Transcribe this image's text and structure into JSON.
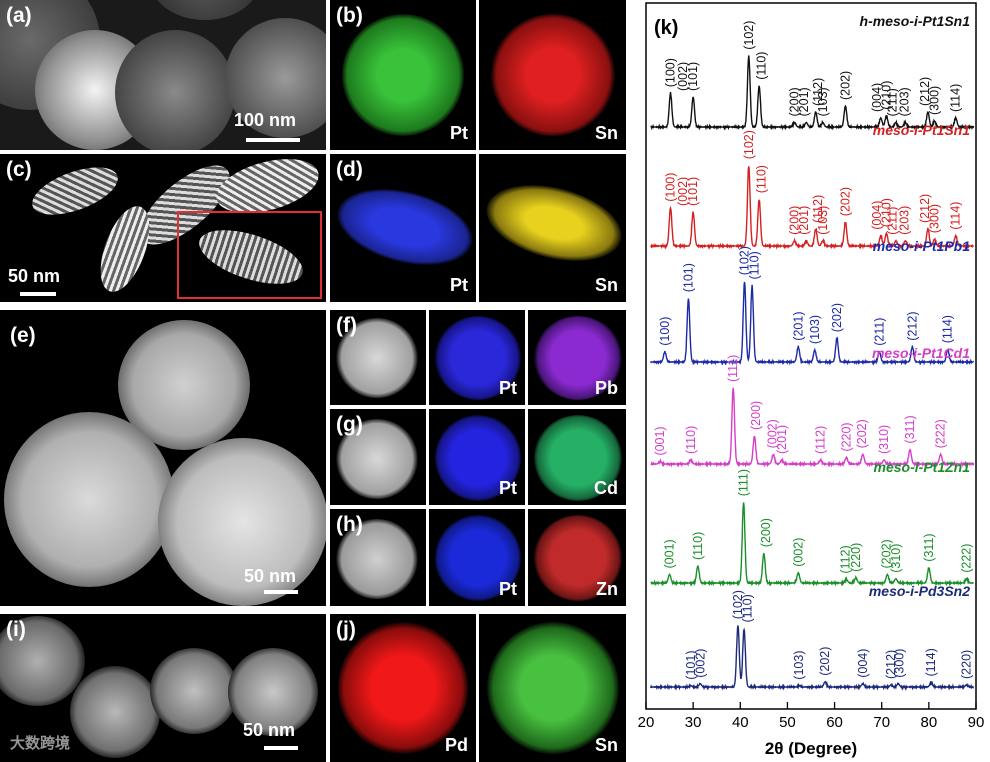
{
  "panels": {
    "a": {
      "label": "(a)",
      "scale": "100 nm"
    },
    "b": {
      "label": "(b)",
      "el1": "Pt",
      "el2": "Sn"
    },
    "c": {
      "label": "(c)",
      "scale": "50 nm"
    },
    "d": {
      "label": "(d)",
      "el1": "Pt",
      "el2": "Sn"
    },
    "e": {
      "label": "(e)",
      "scale": "50 nm"
    },
    "f": {
      "label": "(f)",
      "el1": "Pt",
      "el2": "Pb"
    },
    "g": {
      "label": "(g)",
      "el1": "Pt",
      "el2": "Cd"
    },
    "h": {
      "label": "(h)",
      "el1": "Pt",
      "el2": "Zn"
    },
    "i": {
      "label": "(i)",
      "scale": "50 nm"
    },
    "j": {
      "label": "(j)",
      "el1": "Pd",
      "el2": "Sn"
    }
  },
  "watermark": "大数跨境",
  "chart_data": {
    "type": "line",
    "panel_label": "(k)",
    "xlabel": "2θ (Degree)",
    "xlim": [
      20,
      90
    ],
    "xticks": [
      20,
      30,
      40,
      50,
      60,
      70,
      80,
      90
    ],
    "series": [
      {
        "name": "h-meso-i-Pt1Sn1",
        "color": "#111111",
        "peaks": [
          [
            25.2,
            0.45
          ],
          [
            30.0,
            0.4
          ],
          [
            41.8,
            0.95
          ],
          [
            44.0,
            0.55
          ],
          [
            51.5,
            0.06
          ],
          [
            54.0,
            0.06
          ],
          [
            56.0,
            0.2
          ],
          [
            57.5,
            0.06
          ],
          [
            62.3,
            0.28
          ],
          [
            69.8,
            0.12
          ],
          [
            71.0,
            0.15
          ],
          [
            73.0,
            0.06
          ],
          [
            75.0,
            0.06
          ],
          [
            79.8,
            0.2
          ],
          [
            81.2,
            0.08
          ],
          [
            85.7,
            0.12
          ]
        ],
        "labels": [
          {
            "x": 25.2,
            "t": "(100)"
          },
          {
            "x": 27.8,
            "t": "(002)"
          },
          {
            "x": 30.0,
            "t": "(101)"
          },
          {
            "x": 41.8,
            "t": "(102)"
          },
          {
            "x": 44.5,
            "t": "(110)"
          },
          {
            "x": 51.5,
            "t": "(200)"
          },
          {
            "x": 53.5,
            "t": "(201)"
          },
          {
            "x": 56.5,
            "t": "(112)"
          },
          {
            "x": 57.5,
            "t": "(103)"
          },
          {
            "x": 62.3,
            "t": "(202)"
          },
          {
            "x": 69.0,
            "t": "(004)"
          },
          {
            "x": 71.0,
            "t": "(210)"
          },
          {
            "x": 72.3,
            "t": "(211)"
          },
          {
            "x": 74.8,
            "t": "(203)"
          },
          {
            "x": 79.2,
            "t": "(212)"
          },
          {
            "x": 81.2,
            "t": "(300)"
          },
          {
            "x": 85.7,
            "t": "(114)"
          }
        ]
      },
      {
        "name": "meso-i-Pt1Sn1",
        "color": "#d42020",
        "peaks": [
          [
            25.2,
            0.45
          ],
          [
            30.0,
            0.4
          ],
          [
            41.8,
            0.95
          ],
          [
            44.0,
            0.55
          ],
          [
            51.5,
            0.06
          ],
          [
            54.0,
            0.06
          ],
          [
            56.0,
            0.2
          ],
          [
            57.5,
            0.06
          ],
          [
            62.3,
            0.28
          ],
          [
            69.8,
            0.12
          ],
          [
            71.0,
            0.15
          ],
          [
            73.0,
            0.06
          ],
          [
            75.0,
            0.06
          ],
          [
            79.8,
            0.2
          ],
          [
            81.2,
            0.08
          ],
          [
            85.7,
            0.12
          ]
        ],
        "labels": [
          {
            "x": 25.2,
            "t": "(100)"
          },
          {
            "x": 27.8,
            "t": "(002)"
          },
          {
            "x": 30.0,
            "t": "(101)"
          },
          {
            "x": 41.8,
            "t": "(102)"
          },
          {
            "x": 44.5,
            "t": "(110)"
          },
          {
            "x": 51.5,
            "t": "(200)"
          },
          {
            "x": 53.5,
            "t": "(201)"
          },
          {
            "x": 56.5,
            "t": "(112)"
          },
          {
            "x": 57.5,
            "t": "(103)"
          },
          {
            "x": 62.3,
            "t": "(202)"
          },
          {
            "x": 69.0,
            "t": "(004)"
          },
          {
            "x": 71.0,
            "t": "(210)"
          },
          {
            "x": 72.3,
            "t": "(211)"
          },
          {
            "x": 74.8,
            "t": "(203)"
          },
          {
            "x": 79.2,
            "t": "(212)"
          },
          {
            "x": 81.2,
            "t": "(300)"
          },
          {
            "x": 85.7,
            "t": "(114)"
          }
        ]
      },
      {
        "name": "meso-i-Pt1Pb1",
        "color": "#1c2aa6",
        "peaks": [
          [
            24.0,
            0.12
          ],
          [
            29.0,
            0.75
          ],
          [
            40.9,
            0.95
          ],
          [
            42.5,
            0.9
          ],
          [
            52.3,
            0.18
          ],
          [
            55.8,
            0.14
          ],
          [
            60.5,
            0.28
          ],
          [
            69.5,
            0.12
          ],
          [
            76.5,
            0.18
          ],
          [
            84.0,
            0.15
          ]
        ],
        "labels": [
          {
            "x": 24.0,
            "t": "(100)"
          },
          {
            "x": 29.0,
            "t": "(101)"
          },
          {
            "x": 40.9,
            "t": "(102)"
          },
          {
            "x": 43.0,
            "t": "(110)"
          },
          {
            "x": 52.3,
            "t": "(201)"
          },
          {
            "x": 55.8,
            "t": "(103)"
          },
          {
            "x": 60.5,
            "t": "(202)"
          },
          {
            "x": 69.5,
            "t": "(211)"
          },
          {
            "x": 76.5,
            "t": "(212)"
          },
          {
            "x": 84.0,
            "t": "(114)"
          }
        ]
      },
      {
        "name": "meso-i-Pt1Cd1",
        "color": "#d43ec8",
        "peaks": [
          [
            23.0,
            0.03
          ],
          [
            29.5,
            0.05
          ],
          [
            38.5,
            0.95
          ],
          [
            43.0,
            0.35
          ],
          [
            47.0,
            0.12
          ],
          [
            48.8,
            0.05
          ],
          [
            57.0,
            0.05
          ],
          [
            62.5,
            0.08
          ],
          [
            66.0,
            0.12
          ],
          [
            70.5,
            0.05
          ],
          [
            76.0,
            0.18
          ],
          [
            82.5,
            0.12
          ]
        ],
        "labels": [
          {
            "x": 23.0,
            "t": "(001)"
          },
          {
            "x": 29.5,
            "t": "(110)"
          },
          {
            "x": 38.5,
            "t": "(111)"
          },
          {
            "x": 43.3,
            "t": "(200)"
          },
          {
            "x": 46.8,
            "t": "(002)"
          },
          {
            "x": 48.8,
            "t": "(201)"
          },
          {
            "x": 57.0,
            "t": "(112)"
          },
          {
            "x": 62.5,
            "t": "(220)"
          },
          {
            "x": 65.8,
            "t": "(202)"
          },
          {
            "x": 70.5,
            "t": "(310)"
          },
          {
            "x": 76.0,
            "t": "(311)"
          },
          {
            "x": 82.5,
            "t": "(222)"
          }
        ]
      },
      {
        "name": "meso-i-Pt1Zn1",
        "color": "#1a8f2a",
        "peaks": [
          [
            25.0,
            0.1
          ],
          [
            31.0,
            0.2
          ],
          [
            40.7,
            0.95
          ],
          [
            45.0,
            0.35
          ],
          [
            52.3,
            0.12
          ],
          [
            62.5,
            0.04
          ],
          [
            64.5,
            0.06
          ],
          [
            71.2,
            0.1
          ],
          [
            73.0,
            0.05
          ],
          [
            80.0,
            0.18
          ],
          [
            88.0,
            0.05
          ]
        ],
        "labels": [
          {
            "x": 25.0,
            "t": "(001)"
          },
          {
            "x": 31.0,
            "t": "(110)"
          },
          {
            "x": 40.7,
            "t": "(111)"
          },
          {
            "x": 45.5,
            "t": "(200)"
          },
          {
            "x": 52.3,
            "t": "(002)"
          },
          {
            "x": 62.3,
            "t": "(112)"
          },
          {
            "x": 64.5,
            "t": "(220)"
          },
          {
            "x": 71.0,
            "t": "(202)"
          },
          {
            "x": 73.0,
            "t": "(310)"
          },
          {
            "x": 80.0,
            "t": "(311)"
          },
          {
            "x": 88.0,
            "t": "(222)"
          }
        ]
      },
      {
        "name": "meso-i-Pd3Sn2",
        "color": "#1c2a7a",
        "peaks": [
          [
            29.5,
            0.02
          ],
          [
            31.5,
            0.05
          ],
          [
            39.5,
            0.95
          ],
          [
            40.8,
            0.9
          ],
          [
            52.5,
            0.02
          ],
          [
            58.0,
            0.08
          ],
          [
            66.0,
            0.05
          ],
          [
            72.0,
            0.03
          ],
          [
            73.5,
            0.05
          ],
          [
            80.5,
            0.07
          ],
          [
            88.0,
            0.03
          ]
        ],
        "labels": [
          {
            "x": 29.5,
            "t": "(101)"
          },
          {
            "x": 31.6,
            "t": "(002)"
          },
          {
            "x": 39.5,
            "t": "(102)"
          },
          {
            "x": 41.5,
            "t": "(110)"
          },
          {
            "x": 52.5,
            "t": "(103)"
          },
          {
            "x": 58.0,
            "t": "(202)"
          },
          {
            "x": 66.0,
            "t": "(004)"
          },
          {
            "x": 72.0,
            "t": "(212)"
          },
          {
            "x": 73.8,
            "t": "(300)"
          },
          {
            "x": 80.5,
            "t": "(114)"
          },
          {
            "x": 88.0,
            "t": "(220)"
          }
        ]
      }
    ]
  }
}
